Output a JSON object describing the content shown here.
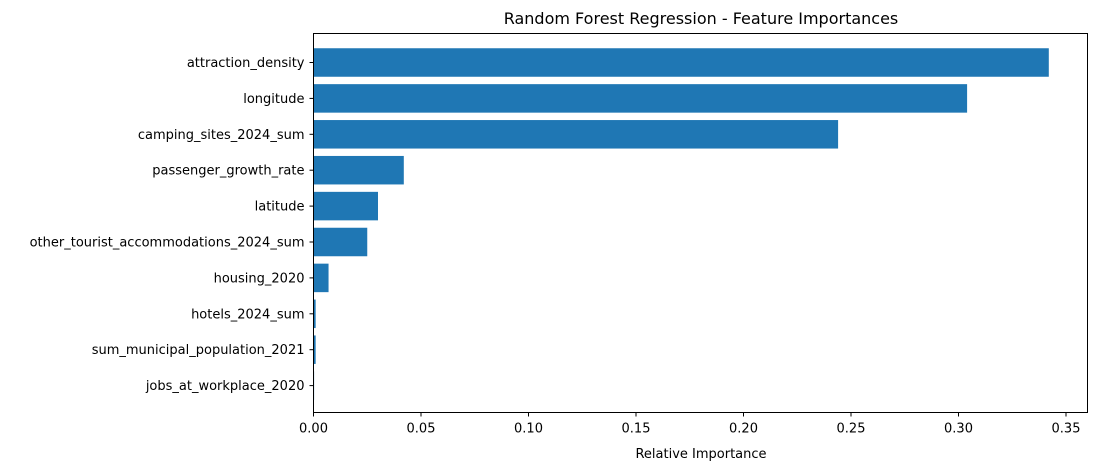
{
  "chart_data": {
    "type": "bar",
    "orientation": "horizontal",
    "title": "Random Forest Regression - Feature Importances",
    "xlabel": "Relative Importance",
    "ylabel": "",
    "xlim": [
      0,
      0.36
    ],
    "xticks": [
      "0.00",
      "0.05",
      "0.10",
      "0.15",
      "0.20",
      "0.25",
      "0.30",
      "0.35"
    ],
    "grid": false,
    "bar_color": "#1f77b4",
    "categories": [
      "attraction_density",
      "longitude",
      "camping_sites_2024_sum",
      "passenger_growth_rate",
      "latitude",
      "other_tourist_accommodations_2024_sum",
      "housing_2020",
      "hotels_2024_sum",
      "sum_municipal_population_2021",
      "jobs_at_workplace_2020"
    ],
    "values": [
      0.342,
      0.304,
      0.244,
      0.042,
      0.03,
      0.025,
      0.007,
      0.001,
      0.001,
      0.0002
    ]
  }
}
